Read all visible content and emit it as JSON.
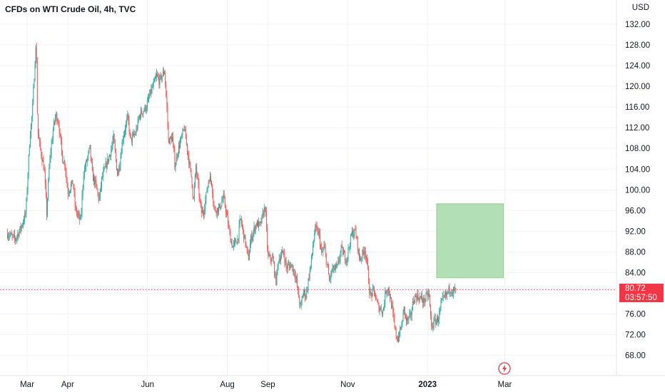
{
  "header": {
    "symbol_title": "CFDs on WTI Crude Oil, 4h, TVC",
    "currency": "USD"
  },
  "price_badge": {
    "last_price": "80.72",
    "countdown": "03:57:50",
    "color": "#f23645"
  },
  "colors": {
    "up": "#26a69a",
    "down": "#ef5350",
    "target_zone": "#b2dfb4",
    "target_zone_border": "#8fcf92",
    "price_line": "#f23645"
  },
  "icons": {
    "alert": "lightning-bolt-icon"
  },
  "chart_data": {
    "type": "candlestick",
    "title": "CFDs on WTI Crude Oil, 4h, TVC",
    "y_unit": "USD",
    "ylim": [
      64.5,
      134
    ],
    "y_ticks": [
      "132.00",
      "128.00",
      "124.00",
      "120.00",
      "116.00",
      "112.00",
      "108.00",
      "104.00",
      "100.00",
      "96.00",
      "92.00",
      "88.00",
      "84.00",
      "80.00",
      "76.00",
      "72.00",
      "68.00"
    ],
    "x_ticks": [
      {
        "label": "Mar",
        "date": "2022-03-01",
        "bold": false
      },
      {
        "label": "Apr",
        "date": "2022-04-01",
        "bold": false
      },
      {
        "label": "Jun",
        "date": "2022-06-01",
        "bold": false
      },
      {
        "label": "Aug",
        "date": "2022-08-01",
        "bold": false
      },
      {
        "label": "Sep",
        "date": "2022-09-01",
        "bold": false
      },
      {
        "label": "Nov",
        "date": "2022-11-01",
        "bold": false
      },
      {
        "label": "2023",
        "date": "2023-01-01",
        "bold": true
      },
      {
        "label": "Mar",
        "date": "2023-03-01",
        "bold": false
      }
    ],
    "last_price": 80.72,
    "target_zone": {
      "date_from": "2023-01-08",
      "date_to": "2023-02-28",
      "price_low": 83.0,
      "price_high": 97.3
    },
    "price_path": [
      [
        "2022-02-14",
        91.5
      ],
      [
        "2022-02-20",
        90.5
      ],
      [
        "2022-02-24",
        92.5
      ],
      [
        "2022-02-28",
        95.5
      ],
      [
        "2022-03-03",
        110.0
      ],
      [
        "2022-03-05",
        115.0
      ],
      [
        "2022-03-07",
        125.0
      ],
      [
        "2022-03-08",
        128.5
      ],
      [
        "2022-03-09",
        111.5
      ],
      [
        "2022-03-11",
        108.0
      ],
      [
        "2022-03-14",
        104.0
      ],
      [
        "2022-03-16",
        95.5
      ],
      [
        "2022-03-18",
        105.0
      ],
      [
        "2022-03-21",
        112.0
      ],
      [
        "2022-03-23",
        114.5
      ],
      [
        "2022-03-25",
        113.0
      ],
      [
        "2022-03-28",
        106.0
      ],
      [
        "2022-03-30",
        105.0
      ],
      [
        "2022-04-01",
        99.5
      ],
      [
        "2022-04-05",
        101.5
      ],
      [
        "2022-04-07",
        96.0
      ],
      [
        "2022-04-11",
        94.0
      ],
      [
        "2022-04-13",
        103.0
      ],
      [
        "2022-04-18",
        108.0
      ],
      [
        "2022-04-20",
        102.5
      ],
      [
        "2022-04-22",
        101.5
      ],
      [
        "2022-04-25",
        98.0
      ],
      [
        "2022-04-27",
        102.0
      ],
      [
        "2022-04-30",
        104.5
      ],
      [
        "2022-05-04",
        107.5
      ],
      [
        "2022-05-06",
        110.0
      ],
      [
        "2022-05-09",
        103.0
      ],
      [
        "2022-05-11",
        105.5
      ],
      [
        "2022-05-13",
        110.0
      ],
      [
        "2022-05-17",
        114.0
      ],
      [
        "2022-05-19",
        109.5
      ],
      [
        "2022-05-23",
        111.0
      ],
      [
        "2022-05-26",
        114.5
      ],
      [
        "2022-05-31",
        116.0
      ],
      [
        "2022-06-03",
        118.5
      ],
      [
        "2022-06-08",
        122.0
      ],
      [
        "2022-06-10",
        121.0
      ],
      [
        "2022-06-14",
        123.0
      ],
      [
        "2022-06-16",
        115.0
      ],
      [
        "2022-06-17",
        109.5
      ],
      [
        "2022-06-20",
        110.0
      ],
      [
        "2022-06-22",
        104.5
      ],
      [
        "2022-06-24",
        107.5
      ],
      [
        "2022-06-27",
        110.0
      ],
      [
        "2022-06-29",
        112.0
      ],
      [
        "2022-07-01",
        108.5
      ],
      [
        "2022-07-05",
        101.5
      ],
      [
        "2022-07-06",
        97.5
      ],
      [
        "2022-07-08",
        104.5
      ],
      [
        "2022-07-12",
        95.5
      ],
      [
        "2022-07-14",
        96.0
      ],
      [
        "2022-07-18",
        102.5
      ],
      [
        "2022-07-20",
        101.5
      ],
      [
        "2022-07-22",
        96.0
      ],
      [
        "2022-07-26",
        96.5
      ],
      [
        "2022-07-29",
        98.5
      ],
      [
        "2022-08-01",
        94.5
      ],
      [
        "2022-08-03",
        91.0
      ],
      [
        "2022-08-05",
        89.0
      ],
      [
        "2022-08-09",
        90.5
      ],
      [
        "2022-08-11",
        94.5
      ],
      [
        "2022-08-15",
        89.5
      ],
      [
        "2022-08-17",
        86.5
      ],
      [
        "2022-08-19",
        90.5
      ],
      [
        "2022-08-23",
        93.5
      ],
      [
        "2022-08-26",
        93.0
      ],
      [
        "2022-08-30",
        97.0
      ],
      [
        "2022-09-01",
        87.0
      ],
      [
        "2022-09-05",
        86.5
      ],
      [
        "2022-09-07",
        82.0
      ],
      [
        "2022-09-09",
        86.5
      ],
      [
        "2022-09-13",
        88.0
      ],
      [
        "2022-09-15",
        85.0
      ],
      [
        "2022-09-19",
        85.5
      ],
      [
        "2022-09-22",
        83.5
      ],
      [
        "2022-09-26",
        77.0
      ],
      [
        "2022-09-28",
        80.5
      ],
      [
        "2022-09-30",
        79.5
      ],
      [
        "2022-10-04",
        86.0
      ],
      [
        "2022-10-07",
        92.5
      ],
      [
        "2022-10-10",
        91.5
      ],
      [
        "2022-10-12",
        87.5
      ],
      [
        "2022-10-14",
        89.0
      ],
      [
        "2022-10-18",
        82.5
      ],
      [
        "2022-10-20",
        84.5
      ],
      [
        "2022-10-24",
        85.0
      ],
      [
        "2022-10-27",
        88.5
      ],
      [
        "2022-10-31",
        86.5
      ],
      [
        "2022-11-04",
        91.5
      ],
      [
        "2022-11-07",
        92.0
      ],
      [
        "2022-11-10",
        86.5
      ],
      [
        "2022-11-14",
        88.5
      ],
      [
        "2022-11-16",
        85.5
      ],
      [
        "2022-11-18",
        79.5
      ],
      [
        "2022-11-21",
        80.5
      ],
      [
        "2022-11-24",
        77.5
      ],
      [
        "2022-11-28",
        76.5
      ],
      [
        "2022-11-30",
        80.5
      ],
      [
        "2022-12-02",
        81.0
      ],
      [
        "2022-12-05",
        77.0
      ],
      [
        "2022-12-07",
        73.0
      ],
      [
        "2022-12-09",
        71.0
      ],
      [
        "2022-12-12",
        73.5
      ],
      [
        "2022-12-14",
        77.0
      ],
      [
        "2022-12-16",
        74.5
      ],
      [
        "2022-12-19",
        75.5
      ],
      [
        "2022-12-21",
        78.5
      ],
      [
        "2022-12-23",
        79.5
      ],
      [
        "2022-12-27",
        79.0
      ],
      [
        "2022-12-29",
        78.5
      ],
      [
        "2023-01-02",
        80.0
      ],
      [
        "2023-01-04",
        73.5
      ],
      [
        "2023-01-06",
        74.5
      ],
      [
        "2023-01-09",
        75.0
      ],
      [
        "2023-01-12",
        78.5
      ],
      [
        "2023-01-15",
        79.5
      ],
      [
        "2023-01-18",
        81.0
      ],
      [
        "2023-01-20",
        80.5
      ],
      [
        "2023-01-23",
        80.72
      ]
    ]
  }
}
